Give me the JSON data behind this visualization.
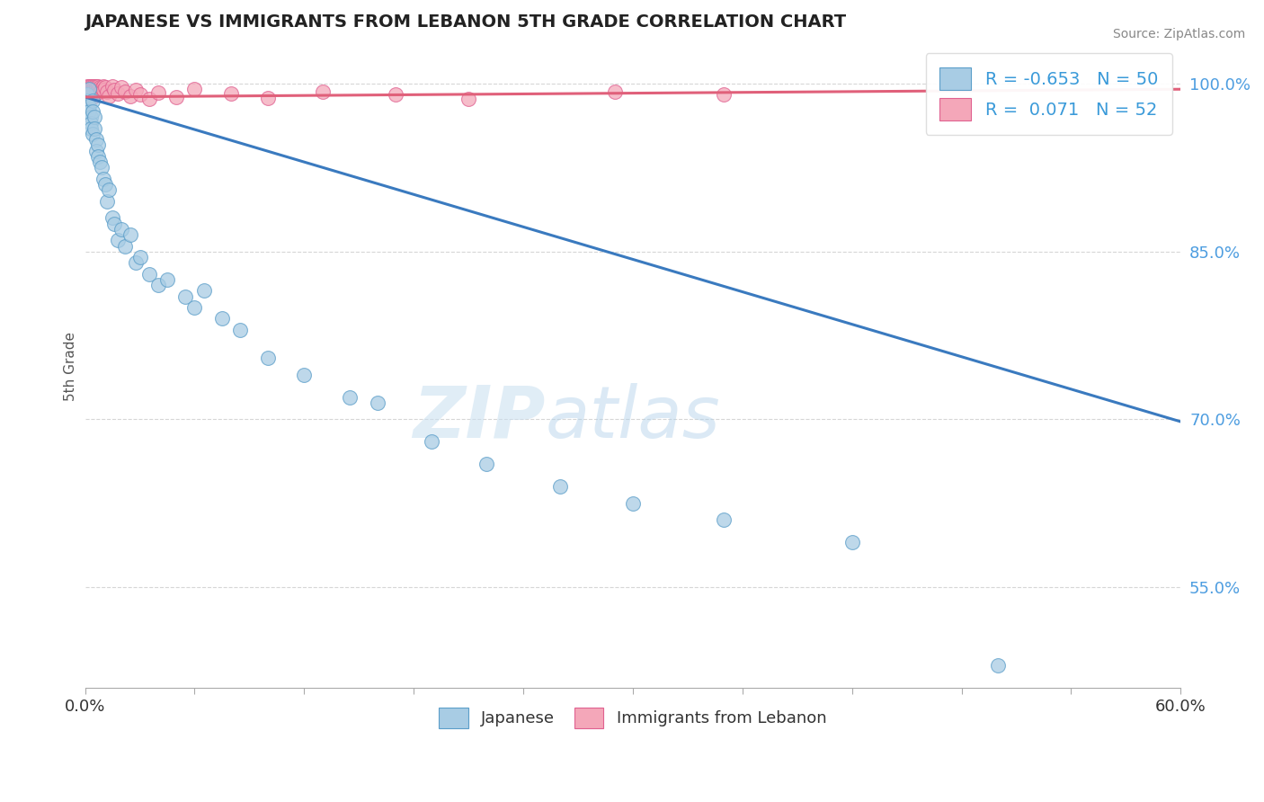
{
  "title": "JAPANESE VS IMMIGRANTS FROM LEBANON 5TH GRADE CORRELATION CHART",
  "source": "Source: ZipAtlas.com",
  "xlabel_label": "Japanese",
  "xlabel_label2": "Immigrants from Lebanon",
  "ylabel": "5th Grade",
  "xlim": [
    0.0,
    0.6
  ],
  "ylim": [
    0.46,
    1.035
  ],
  "xticks": [
    0.0,
    0.06,
    0.12,
    0.18,
    0.24,
    0.3,
    0.36,
    0.42,
    0.48,
    0.54,
    0.6
  ],
  "ytick_positions": [
    0.55,
    0.7,
    0.85,
    1.0
  ],
  "ytick_labels": [
    "55.0%",
    "70.0%",
    "85.0%",
    "100.0%"
  ],
  "watermark_zip": "ZIP",
  "watermark_atlas": "atlas",
  "legend_line1": "R = -0.653   N = 50",
  "legend_line2": "R =  0.071   N = 52",
  "blue_scatter_color": "#a8cce4",
  "blue_scatter_edge": "#5b9ec9",
  "pink_scatter_color": "#f4a7b9",
  "pink_scatter_edge": "#e06090",
  "blue_line_color": "#3a7abf",
  "pink_line_color": "#e0607a",
  "blue_trendline": [
    [
      0.0,
      0.988
    ],
    [
      0.6,
      0.698
    ]
  ],
  "pink_trendline": [
    [
      0.0,
      0.988
    ],
    [
      0.6,
      0.995
    ]
  ],
  "jp_x": [
    0.001,
    0.001,
    0.002,
    0.002,
    0.002,
    0.003,
    0.003,
    0.003,
    0.004,
    0.004,
    0.004,
    0.005,
    0.005,
    0.006,
    0.006,
    0.007,
    0.007,
    0.008,
    0.009,
    0.01,
    0.011,
    0.012,
    0.013,
    0.015,
    0.016,
    0.018,
    0.02,
    0.022,
    0.025,
    0.028,
    0.03,
    0.035,
    0.04,
    0.045,
    0.055,
    0.06,
    0.065,
    0.075,
    0.085,
    0.1,
    0.12,
    0.145,
    0.16,
    0.19,
    0.22,
    0.26,
    0.3,
    0.35,
    0.42,
    0.5
  ],
  "jp_y": [
    0.99,
    0.985,
    0.98,
    0.975,
    0.995,
    0.97,
    0.965,
    0.96,
    0.985,
    0.975,
    0.955,
    0.97,
    0.96,
    0.95,
    0.94,
    0.945,
    0.935,
    0.93,
    0.925,
    0.915,
    0.91,
    0.895,
    0.905,
    0.88,
    0.875,
    0.86,
    0.87,
    0.855,
    0.865,
    0.84,
    0.845,
    0.83,
    0.82,
    0.825,
    0.81,
    0.8,
    0.815,
    0.79,
    0.78,
    0.755,
    0.74,
    0.72,
    0.715,
    0.68,
    0.66,
    0.64,
    0.625,
    0.61,
    0.59,
    0.48
  ],
  "lb_x": [
    0.001,
    0.001,
    0.001,
    0.001,
    0.002,
    0.002,
    0.002,
    0.002,
    0.002,
    0.003,
    0.003,
    0.003,
    0.003,
    0.004,
    0.004,
    0.004,
    0.004,
    0.005,
    0.005,
    0.005,
    0.006,
    0.006,
    0.006,
    0.007,
    0.007,
    0.008,
    0.008,
    0.009,
    0.01,
    0.01,
    0.011,
    0.012,
    0.013,
    0.015,
    0.016,
    0.018,
    0.02,
    0.022,
    0.025,
    0.028,
    0.03,
    0.035,
    0.04,
    0.05,
    0.06,
    0.08,
    0.1,
    0.13,
    0.17,
    0.21,
    0.29,
    0.35
  ],
  "lb_y": [
    0.998,
    0.995,
    0.992,
    0.988,
    0.998,
    0.995,
    0.992,
    0.989,
    0.986,
    0.998,
    0.995,
    0.992,
    0.989,
    0.998,
    0.995,
    0.992,
    0.988,
    0.998,
    0.995,
    0.991,
    0.998,
    0.995,
    0.992,
    0.998,
    0.994,
    0.997,
    0.993,
    0.996,
    0.998,
    0.994,
    0.997,
    0.993,
    0.989,
    0.998,
    0.994,
    0.991,
    0.997,
    0.993,
    0.989,
    0.994,
    0.99,
    0.986,
    0.992,
    0.988,
    0.995,
    0.991,
    0.987,
    0.993,
    0.99,
    0.986,
    0.993,
    0.99
  ]
}
